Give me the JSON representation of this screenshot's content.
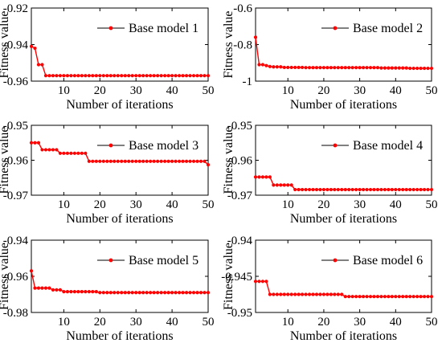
{
  "chart_data": [
    {
      "type": "line",
      "legend": "Base model 1",
      "xlabel": "Number of iterations",
      "ylabel": "Fitness value",
      "xlim": [
        1,
        50
      ],
      "ylim": [
        -0.96,
        -0.92
      ],
      "xticks": [
        10,
        20,
        30,
        40,
        50
      ],
      "yticks": [
        -0.92,
        -0.94,
        -0.96
      ],
      "ytick_labels": [
        "-0.92",
        "-0.94",
        "-0.96"
      ],
      "series": [
        {
          "name": "Base model 1",
          "x": [
            1,
            2,
            3,
            4,
            5,
            6,
            7,
            8,
            9,
            10,
            11,
            12,
            13,
            14,
            15,
            16,
            17,
            18,
            19,
            20,
            21,
            22,
            23,
            24,
            25,
            26,
            27,
            28,
            29,
            30,
            31,
            32,
            33,
            34,
            35,
            36,
            37,
            38,
            39,
            40,
            41,
            42,
            43,
            44,
            45,
            46,
            47,
            48,
            49,
            50
          ],
          "y": [
            -0.941,
            -0.942,
            -0.951,
            -0.951,
            -0.957,
            -0.957,
            -0.957,
            -0.957,
            -0.957,
            -0.957,
            -0.957,
            -0.957,
            -0.957,
            -0.957,
            -0.957,
            -0.957,
            -0.957,
            -0.957,
            -0.957,
            -0.957,
            -0.957,
            -0.957,
            -0.957,
            -0.957,
            -0.957,
            -0.957,
            -0.957,
            -0.957,
            -0.957,
            -0.957,
            -0.957,
            -0.957,
            -0.957,
            -0.957,
            -0.957,
            -0.957,
            -0.957,
            -0.957,
            -0.957,
            -0.957,
            -0.957,
            -0.957,
            -0.957,
            -0.957,
            -0.957,
            -0.957,
            -0.957,
            -0.957,
            -0.957,
            -0.957
          ]
        }
      ]
    },
    {
      "type": "line",
      "legend": "Base model 2",
      "xlabel": "Number of iterations",
      "ylabel": "Fitness value",
      "xlim": [
        1,
        50
      ],
      "ylim": [
        -1.0,
        -0.6
      ],
      "xticks": [
        10,
        20,
        30,
        40,
        50
      ],
      "yticks": [
        -0.6,
        -0.8,
        -1.0
      ],
      "ytick_labels": [
        "-0.6",
        "-0.8",
        "-1"
      ],
      "series": [
        {
          "name": "Base model 2",
          "x": [
            1,
            2,
            3,
            4,
            5,
            6,
            7,
            8,
            9,
            10,
            11,
            12,
            13,
            14,
            15,
            16,
            17,
            18,
            19,
            20,
            21,
            22,
            23,
            24,
            25,
            26,
            27,
            28,
            29,
            30,
            31,
            32,
            33,
            34,
            35,
            36,
            37,
            38,
            39,
            40,
            41,
            42,
            43,
            44,
            45,
            46,
            47,
            48,
            49,
            50
          ],
          "y": [
            -0.76,
            -0.91,
            -0.91,
            -0.915,
            -0.92,
            -0.922,
            -0.922,
            -0.922,
            -0.925,
            -0.925,
            -0.925,
            -0.925,
            -0.925,
            -0.925,
            -0.926,
            -0.926,
            -0.926,
            -0.926,
            -0.926,
            -0.926,
            -0.926,
            -0.926,
            -0.926,
            -0.926,
            -0.926,
            -0.926,
            -0.926,
            -0.926,
            -0.926,
            -0.926,
            -0.926,
            -0.926,
            -0.926,
            -0.926,
            -0.926,
            -0.928,
            -0.928,
            -0.928,
            -0.928,
            -0.928,
            -0.928,
            -0.928,
            -0.928,
            -0.93,
            -0.93,
            -0.93,
            -0.93,
            -0.93,
            -0.93,
            -0.93
          ]
        }
      ]
    },
    {
      "type": "line",
      "legend": "Base model 3",
      "xlabel": "Number of iterations",
      "ylabel": "Fitness value",
      "xlim": [
        1,
        50
      ],
      "ylim": [
        -0.97,
        -0.95
      ],
      "xticks": [
        10,
        20,
        30,
        40,
        50
      ],
      "yticks": [
        -0.95,
        -0.96,
        -0.97
      ],
      "ytick_labels": [
        "-0.95",
        "-0.96",
        "-0.97"
      ],
      "series": [
        {
          "name": "Base model 3",
          "x": [
            1,
            2,
            3,
            4,
            5,
            6,
            7,
            8,
            9,
            10,
            11,
            12,
            13,
            14,
            15,
            16,
            17,
            18,
            19,
            20,
            21,
            22,
            23,
            24,
            25,
            26,
            27,
            28,
            29,
            30,
            31,
            32,
            33,
            34,
            35,
            36,
            37,
            38,
            39,
            40,
            41,
            42,
            43,
            44,
            45,
            46,
            47,
            48,
            49,
            50
          ],
          "y": [
            -0.955,
            -0.955,
            -0.955,
            -0.957,
            -0.957,
            -0.957,
            -0.957,
            -0.957,
            -0.958,
            -0.958,
            -0.958,
            -0.958,
            -0.958,
            -0.958,
            -0.958,
            -0.958,
            -0.9603,
            -0.9603,
            -0.9603,
            -0.9603,
            -0.9603,
            -0.9603,
            -0.9603,
            -0.9603,
            -0.9603,
            -0.9603,
            -0.9603,
            -0.9603,
            -0.9603,
            -0.9603,
            -0.9603,
            -0.9603,
            -0.9603,
            -0.9603,
            -0.9603,
            -0.9603,
            -0.9603,
            -0.9603,
            -0.9603,
            -0.9603,
            -0.9603,
            -0.9603,
            -0.9603,
            -0.9603,
            -0.9603,
            -0.9603,
            -0.9603,
            -0.9603,
            -0.9603,
            -0.9613
          ]
        }
      ]
    },
    {
      "type": "line",
      "legend": "Base model 4",
      "xlabel": "Number of iterations",
      "ylabel": "Fitness value",
      "xlim": [
        1,
        50
      ],
      "ylim": [
        -0.97,
        -0.95
      ],
      "xticks": [
        10,
        20,
        30,
        40,
        50
      ],
      "yticks": [
        -0.95,
        -0.96,
        -0.97
      ],
      "ytick_labels": [
        "-0.95",
        "-0.96",
        "-0.97"
      ],
      "series": [
        {
          "name": "Base model 4",
          "x": [
            1,
            2,
            3,
            4,
            5,
            6,
            7,
            8,
            9,
            10,
            11,
            12,
            13,
            14,
            15,
            16,
            17,
            18,
            19,
            20,
            21,
            22,
            23,
            24,
            25,
            26,
            27,
            28,
            29,
            30,
            31,
            32,
            33,
            34,
            35,
            36,
            37,
            38,
            39,
            40,
            41,
            42,
            43,
            44,
            45,
            46,
            47,
            48,
            49,
            50
          ],
          "y": [
            -0.9648,
            -0.9648,
            -0.9648,
            -0.9648,
            -0.9648,
            -0.9671,
            -0.9671,
            -0.9671,
            -0.9671,
            -0.9671,
            -0.9671,
            -0.9684,
            -0.9684,
            -0.9684,
            -0.9684,
            -0.9684,
            -0.9684,
            -0.9684,
            -0.9684,
            -0.9684,
            -0.9684,
            -0.9684,
            -0.9684,
            -0.9684,
            -0.9684,
            -0.9684,
            -0.9684,
            -0.9684,
            -0.9684,
            -0.9684,
            -0.9684,
            -0.9684,
            -0.9684,
            -0.9684,
            -0.9684,
            -0.9684,
            -0.9684,
            -0.9684,
            -0.9684,
            -0.9684,
            -0.9684,
            -0.9684,
            -0.9684,
            -0.9684,
            -0.9684,
            -0.9684,
            -0.9684,
            -0.9684,
            -0.9684,
            -0.9684
          ]
        }
      ]
    },
    {
      "type": "line",
      "legend": "Base model 5",
      "xlabel": "Number of iterations",
      "ylabel": "Fitness value",
      "xlim": [
        1,
        50
      ],
      "ylim": [
        -0.98,
        -0.94
      ],
      "xticks": [
        10,
        20,
        30,
        40,
        50
      ],
      "yticks": [
        -0.94,
        -0.96,
        -0.98
      ],
      "ytick_labels": [
        "-0.94",
        "-0.96",
        "-0.98"
      ],
      "series": [
        {
          "name": "Base model 5",
          "x": [
            1,
            2,
            3,
            4,
            5,
            6,
            7,
            8,
            9,
            10,
            11,
            12,
            13,
            14,
            15,
            16,
            17,
            18,
            19,
            20,
            21,
            22,
            23,
            24,
            25,
            26,
            27,
            28,
            29,
            30,
            31,
            32,
            33,
            34,
            35,
            36,
            37,
            38,
            39,
            40,
            41,
            42,
            43,
            44,
            45,
            46,
            47,
            48,
            49,
            50
          ],
          "y": [
            -0.957,
            -0.9665,
            -0.9665,
            -0.9665,
            -0.9665,
            -0.9665,
            -0.9675,
            -0.9675,
            -0.9675,
            -0.9685,
            -0.9685,
            -0.9685,
            -0.9685,
            -0.9685,
            -0.9685,
            -0.9685,
            -0.9685,
            -0.9685,
            -0.9685,
            -0.969,
            -0.969,
            -0.969,
            -0.969,
            -0.969,
            -0.969,
            -0.969,
            -0.969,
            -0.969,
            -0.969,
            -0.969,
            -0.969,
            -0.969,
            -0.969,
            -0.969,
            -0.969,
            -0.969,
            -0.969,
            -0.969,
            -0.969,
            -0.969,
            -0.969,
            -0.969,
            -0.969,
            -0.969,
            -0.969,
            -0.969,
            -0.969,
            -0.969,
            -0.969,
            -0.969
          ]
        }
      ]
    },
    {
      "type": "line",
      "legend": "Base model 6",
      "xlabel": "Number of iterations",
      "ylabel": "Fitness value",
      "xlim": [
        1,
        50
      ],
      "ylim": [
        -0.95,
        -0.94
      ],
      "xticks": [
        10,
        20,
        30,
        40,
        50
      ],
      "yticks": [
        -0.94,
        -0.945,
        -0.95
      ],
      "ytick_labels": [
        "-0.94",
        "-0.945",
        "-0.95"
      ],
      "series": [
        {
          "name": "Base model 6",
          "x": [
            1,
            2,
            3,
            4,
            5,
            6,
            7,
            8,
            9,
            10,
            11,
            12,
            13,
            14,
            15,
            16,
            17,
            18,
            19,
            20,
            21,
            22,
            23,
            24,
            25,
            26,
            27,
            28,
            29,
            30,
            31,
            32,
            33,
            34,
            35,
            36,
            37,
            38,
            39,
            40,
            41,
            42,
            43,
            44,
            45,
            46,
            47,
            48,
            49,
            50
          ],
          "y": [
            -0.9457,
            -0.9457,
            -0.9457,
            -0.9457,
            -0.9475,
            -0.9475,
            -0.9475,
            -0.9475,
            -0.9475,
            -0.9475,
            -0.9475,
            -0.9475,
            -0.9475,
            -0.9475,
            -0.9475,
            -0.9475,
            -0.9475,
            -0.9475,
            -0.9475,
            -0.9475,
            -0.9475,
            -0.9475,
            -0.9475,
            -0.9475,
            -0.9475,
            -0.9478,
            -0.9478,
            -0.9478,
            -0.9478,
            -0.9478,
            -0.9478,
            -0.9478,
            -0.9478,
            -0.9478,
            -0.9478,
            -0.9478,
            -0.9478,
            -0.9478,
            -0.9478,
            -0.9478,
            -0.9478,
            -0.9478,
            -0.9478,
            -0.9478,
            -0.9478,
            -0.9478,
            -0.9478,
            -0.9478,
            -0.9478,
            -0.9478
          ]
        }
      ]
    }
  ],
  "style": {
    "marker_color": "#ff0000",
    "line_color": "#ff0000",
    "axis_color": "#000000",
    "legend_line_color": "#000000"
  }
}
